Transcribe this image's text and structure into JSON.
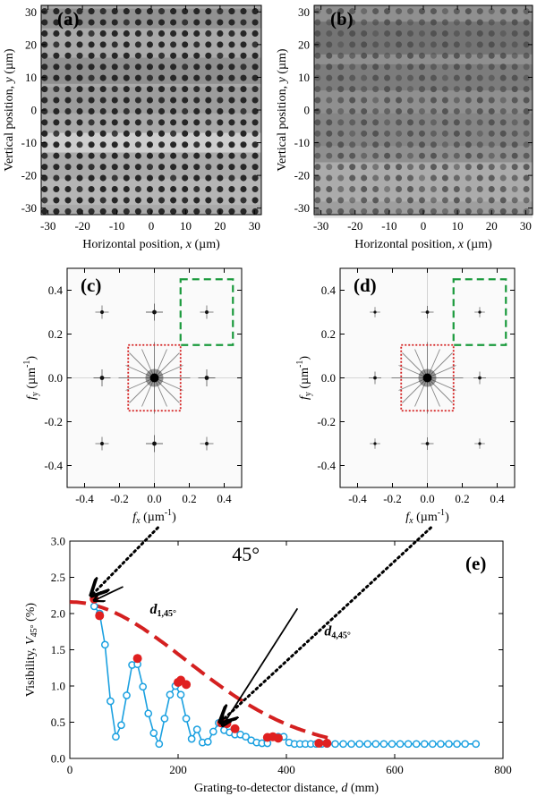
{
  "chart_data": [
    {
      "panel": "(a)",
      "type": "heatmap",
      "xlabel_pre": "Horizontal position, ",
      "xlabel_var": "x",
      "xlabel_unit": " (µm)",
      "ylabel_pre": "Vertical position, ",
      "ylabel_var": "y",
      "ylabel_unit": " (µm)",
      "xlim": [
        -32,
        32
      ],
      "ylim": [
        -32,
        32
      ],
      "xticks": [
        -30,
        -20,
        -10,
        0,
        10,
        20,
        30
      ],
      "yticks": [
        -30,
        -20,
        -10,
        0,
        10,
        20,
        30
      ],
      "dot_period_um": 3.4,
      "colors": {
        "base": "#a9a9a9",
        "dot": "#262626"
      }
    },
    {
      "panel": "(b)",
      "type": "heatmap",
      "xlabel_pre": "Horizontal position, ",
      "xlabel_var": "x",
      "xlabel_unit": " (µm)",
      "ylabel_pre": "Vertical position, ",
      "ylabel_var": "y",
      "ylabel_unit": " (µm)",
      "xlim": [
        -32,
        32
      ],
      "ylim": [
        -32,
        32
      ],
      "xticks": [
        -30,
        -20,
        -10,
        0,
        10,
        20,
        30
      ],
      "yticks": [
        -30,
        -20,
        -10,
        0,
        10,
        20,
        30
      ],
      "dot_period_um": 3.4,
      "colors": {
        "base": "#8f8f8f",
        "dot": "#4a4a4a"
      }
    },
    {
      "panel": "(c)",
      "type": "heatmap",
      "xlabel_var": "f",
      "xlabel_sub": "x",
      "xlabel_unit": " (µm",
      "xlabel_sup": "-1",
      "ylabel_var": "f",
      "ylabel_sub": "y",
      "ylabel_unit": " (µm",
      "ylabel_sup": "-1",
      "xlim": [
        -0.5,
        0.5
      ],
      "ylim": [
        -0.5,
        0.5
      ],
      "xticks": [
        -0.4,
        -0.2,
        0.0,
        0.2,
        0.4
      ],
      "yticks": [
        -0.4,
        -0.2,
        0.0,
        0.2,
        0.4
      ],
      "peaks": [
        {
          "fx": 0,
          "fy": 0,
          "strength": 1.0
        },
        {
          "fx": 0.3,
          "fy": 0,
          "strength": 0.55
        },
        {
          "fx": -0.3,
          "fy": 0,
          "strength": 0.55
        },
        {
          "fx": 0,
          "fy": 0.3,
          "strength": 0.55
        },
        {
          "fx": 0,
          "fy": -0.3,
          "strength": 0.55
        },
        {
          "fx": 0.3,
          "fy": 0.3,
          "strength": 0.35
        },
        {
          "fx": -0.3,
          "fy": 0.3,
          "strength": 0.35
        },
        {
          "fx": 0.3,
          "fy": -0.3,
          "strength": 0.35
        },
        {
          "fx": -0.3,
          "fy": -0.3,
          "strength": 0.35
        }
      ],
      "boxes": [
        {
          "name": "green-dashed-box",
          "x0": 0.15,
          "x1": 0.45,
          "y0": 0.15,
          "y1": 0.45,
          "color": "#1a9a3c",
          "style": "dashed"
        },
        {
          "name": "red-dotted-box",
          "x0": -0.15,
          "x1": 0.15,
          "y0": -0.15,
          "y1": 0.15,
          "color": "#d42020",
          "style": "dotted"
        }
      ]
    },
    {
      "panel": "(d)",
      "type": "heatmap",
      "xlabel_var": "f",
      "xlabel_sub": "x",
      "xlabel_unit": " (µm",
      "xlabel_sup": "-1",
      "ylabel_var": "f",
      "ylabel_sub": "y",
      "ylabel_unit": " (µm",
      "ylabel_sup": "-1",
      "xlim": [
        -0.5,
        0.5
      ],
      "ylim": [
        -0.5,
        0.5
      ],
      "xticks": [
        -0.4,
        -0.2,
        0.0,
        0.2,
        0.4
      ],
      "yticks": [
        -0.4,
        -0.2,
        0.0,
        0.2,
        0.4
      ],
      "peaks": [
        {
          "fx": 0,
          "fy": 0,
          "strength": 1.0
        },
        {
          "fx": 0.3,
          "fy": 0,
          "strength": 0.3
        },
        {
          "fx": -0.3,
          "fy": 0,
          "strength": 0.3
        },
        {
          "fx": 0,
          "fy": 0.3,
          "strength": 0.3
        },
        {
          "fx": 0,
          "fy": -0.3,
          "strength": 0.3
        },
        {
          "fx": 0.3,
          "fy": 0.3,
          "strength": 0.18
        },
        {
          "fx": -0.3,
          "fy": 0.3,
          "strength": 0.18
        },
        {
          "fx": 0.3,
          "fy": -0.3,
          "strength": 0.18
        },
        {
          "fx": -0.3,
          "fy": -0.3,
          "strength": 0.18
        }
      ],
      "boxes": [
        {
          "name": "green-dashed-box",
          "x0": 0.15,
          "x1": 0.45,
          "y0": 0.15,
          "y1": 0.45,
          "color": "#1a9a3c",
          "style": "dashed"
        },
        {
          "name": "red-dotted-box",
          "x0": -0.15,
          "x1": 0.15,
          "y0": -0.15,
          "y1": 0.15,
          "color": "#d42020",
          "style": "dotted"
        }
      ]
    },
    {
      "panel": "(e)",
      "type": "line",
      "title": "45°",
      "xlabel_pre": "Grating-to-detector distance, ",
      "xlabel_var": "d",
      "xlabel_unit": " (mm)",
      "ylabel_pre": "Visibility, ",
      "ylabel_var": "V",
      "ylabel_sub": "45°",
      "ylabel_unit": " (%)",
      "xlim": [
        0,
        800
      ],
      "ylim": [
        0,
        3.0
      ],
      "xticks": [
        0,
        200,
        400,
        600,
        800
      ],
      "yticks": [
        0.0,
        0.5,
        1.0,
        1.5,
        2.0,
        2.5,
        3.0
      ],
      "annotations": [
        {
          "name": "annotation-d1",
          "var": "d",
          "sub": "1,45°",
          "x": 148,
          "y": 2.0,
          "arrow_to_x": 45,
          "arrow_to_y": 2.18
        },
        {
          "name": "annotation-d4",
          "var": "d",
          "sub": "4,45°",
          "x": 470,
          "y": 1.7,
          "arrow_to_x": 282,
          "arrow_to_y": 0.45
        }
      ],
      "series": [
        {
          "name": "open-circles",
          "color": "#1aa0e0",
          "marker": "open-circle",
          "x": [
            45,
            55,
            65,
            75,
            85,
            95,
            105,
            115,
            125,
            135,
            145,
            155,
            165,
            175,
            185,
            195,
            205,
            215,
            225,
            235,
            245,
            255,
            265,
            275,
            285,
            295,
            305,
            315,
            325,
            335,
            345,
            355,
            365,
            375,
            385,
            395,
            405,
            415,
            425,
            435,
            445,
            455,
            465,
            475,
            490,
            505,
            520,
            535,
            550,
            565,
            580,
            595,
            610,
            625,
            640,
            655,
            670,
            685,
            700,
            715,
            730,
            750
          ],
          "y": [
            2.1,
            2.0,
            1.57,
            0.79,
            0.3,
            0.46,
            0.87,
            1.29,
            1.3,
            0.99,
            0.62,
            0.35,
            0.2,
            0.55,
            0.88,
            1.0,
            0.88,
            0.55,
            0.27,
            0.4,
            0.22,
            0.23,
            0.37,
            0.49,
            0.39,
            0.36,
            0.33,
            0.33,
            0.3,
            0.25,
            0.22,
            0.21,
            0.21,
            0.3,
            0.3,
            0.3,
            0.22,
            0.2,
            0.2,
            0.2,
            0.2,
            0.2,
            0.2,
            0.2,
            0.2,
            0.2,
            0.2,
            0.2,
            0.2,
            0.2,
            0.2,
            0.2,
            0.2,
            0.2,
            0.2,
            0.2,
            0.2,
            0.2,
            0.2,
            0.2,
            0.2,
            0.2
          ]
        },
        {
          "name": "filled-circles",
          "color": "#e02020",
          "marker": "filled-circle",
          "x": [
            45,
            55,
            125,
            200,
            205,
            215,
            280,
            290,
            305,
            365,
            375,
            385,
            460,
            475
          ],
          "y": [
            2.2,
            1.97,
            1.38,
            1.05,
            1.08,
            1.02,
            0.49,
            0.48,
            0.41,
            0.29,
            0.3,
            0.28,
            0.21,
            0.21
          ]
        },
        {
          "name": "dashed-fit",
          "color": "#d42020",
          "style": "dashed",
          "amplitude": 2.05,
          "sigma": 215,
          "offset": 0.11
        }
      ]
    }
  ]
}
